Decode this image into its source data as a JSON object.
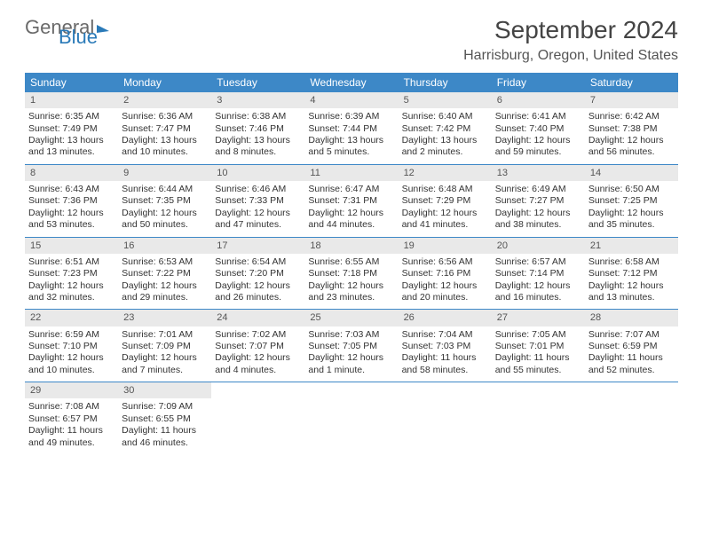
{
  "brand": {
    "part1": "General",
    "part2": "Blue"
  },
  "title": "September 2024",
  "location": "Harrisburg, Oregon, United States",
  "colors": {
    "header_bg": "#3d88c7",
    "header_text": "#ffffff",
    "day_num_bg": "#e9e9e9",
    "rule": "#3d88c7",
    "brand_gray": "#6a6a6a",
    "brand_blue": "#2a7ab8",
    "body_text": "#333333"
  },
  "weekday_labels": [
    "Sunday",
    "Monday",
    "Tuesday",
    "Wednesday",
    "Thursday",
    "Friday",
    "Saturday"
  ],
  "calendar": {
    "type": "table",
    "columns": 7,
    "rows": 5,
    "font_size_body": 10.5,
    "font_size_header": 12
  },
  "days": [
    {
      "n": 1,
      "sunrise": "6:35 AM",
      "sunset": "7:49 PM",
      "daylight": "13 hours and 13 minutes."
    },
    {
      "n": 2,
      "sunrise": "6:36 AM",
      "sunset": "7:47 PM",
      "daylight": "13 hours and 10 minutes."
    },
    {
      "n": 3,
      "sunrise": "6:38 AM",
      "sunset": "7:46 PM",
      "daylight": "13 hours and 8 minutes."
    },
    {
      "n": 4,
      "sunrise": "6:39 AM",
      "sunset": "7:44 PM",
      "daylight": "13 hours and 5 minutes."
    },
    {
      "n": 5,
      "sunrise": "6:40 AM",
      "sunset": "7:42 PM",
      "daylight": "13 hours and 2 minutes."
    },
    {
      "n": 6,
      "sunrise": "6:41 AM",
      "sunset": "7:40 PM",
      "daylight": "12 hours and 59 minutes."
    },
    {
      "n": 7,
      "sunrise": "6:42 AM",
      "sunset": "7:38 PM",
      "daylight": "12 hours and 56 minutes."
    },
    {
      "n": 8,
      "sunrise": "6:43 AM",
      "sunset": "7:36 PM",
      "daylight": "12 hours and 53 minutes."
    },
    {
      "n": 9,
      "sunrise": "6:44 AM",
      "sunset": "7:35 PM",
      "daylight": "12 hours and 50 minutes."
    },
    {
      "n": 10,
      "sunrise": "6:46 AM",
      "sunset": "7:33 PM",
      "daylight": "12 hours and 47 minutes."
    },
    {
      "n": 11,
      "sunrise": "6:47 AM",
      "sunset": "7:31 PM",
      "daylight": "12 hours and 44 minutes."
    },
    {
      "n": 12,
      "sunrise": "6:48 AM",
      "sunset": "7:29 PM",
      "daylight": "12 hours and 41 minutes."
    },
    {
      "n": 13,
      "sunrise": "6:49 AM",
      "sunset": "7:27 PM",
      "daylight": "12 hours and 38 minutes."
    },
    {
      "n": 14,
      "sunrise": "6:50 AM",
      "sunset": "7:25 PM",
      "daylight": "12 hours and 35 minutes."
    },
    {
      "n": 15,
      "sunrise": "6:51 AM",
      "sunset": "7:23 PM",
      "daylight": "12 hours and 32 minutes."
    },
    {
      "n": 16,
      "sunrise": "6:53 AM",
      "sunset": "7:22 PM",
      "daylight": "12 hours and 29 minutes."
    },
    {
      "n": 17,
      "sunrise": "6:54 AM",
      "sunset": "7:20 PM",
      "daylight": "12 hours and 26 minutes."
    },
    {
      "n": 18,
      "sunrise": "6:55 AM",
      "sunset": "7:18 PM",
      "daylight": "12 hours and 23 minutes."
    },
    {
      "n": 19,
      "sunrise": "6:56 AM",
      "sunset": "7:16 PM",
      "daylight": "12 hours and 20 minutes."
    },
    {
      "n": 20,
      "sunrise": "6:57 AM",
      "sunset": "7:14 PM",
      "daylight": "12 hours and 16 minutes."
    },
    {
      "n": 21,
      "sunrise": "6:58 AM",
      "sunset": "7:12 PM",
      "daylight": "12 hours and 13 minutes."
    },
    {
      "n": 22,
      "sunrise": "6:59 AM",
      "sunset": "7:10 PM",
      "daylight": "12 hours and 10 minutes."
    },
    {
      "n": 23,
      "sunrise": "7:01 AM",
      "sunset": "7:09 PM",
      "daylight": "12 hours and 7 minutes."
    },
    {
      "n": 24,
      "sunrise": "7:02 AM",
      "sunset": "7:07 PM",
      "daylight": "12 hours and 4 minutes."
    },
    {
      "n": 25,
      "sunrise": "7:03 AM",
      "sunset": "7:05 PM",
      "daylight": "12 hours and 1 minute."
    },
    {
      "n": 26,
      "sunrise": "7:04 AM",
      "sunset": "7:03 PM",
      "daylight": "11 hours and 58 minutes."
    },
    {
      "n": 27,
      "sunrise": "7:05 AM",
      "sunset": "7:01 PM",
      "daylight": "11 hours and 55 minutes."
    },
    {
      "n": 28,
      "sunrise": "7:07 AM",
      "sunset": "6:59 PM",
      "daylight": "11 hours and 52 minutes."
    },
    {
      "n": 29,
      "sunrise": "7:08 AM",
      "sunset": "6:57 PM",
      "daylight": "11 hours and 49 minutes."
    },
    {
      "n": 30,
      "sunrise": "7:09 AM",
      "sunset": "6:55 PM",
      "daylight": "11 hours and 46 minutes."
    }
  ],
  "labels": {
    "sunrise": "Sunrise:",
    "sunset": "Sunset:",
    "daylight": "Daylight:"
  }
}
